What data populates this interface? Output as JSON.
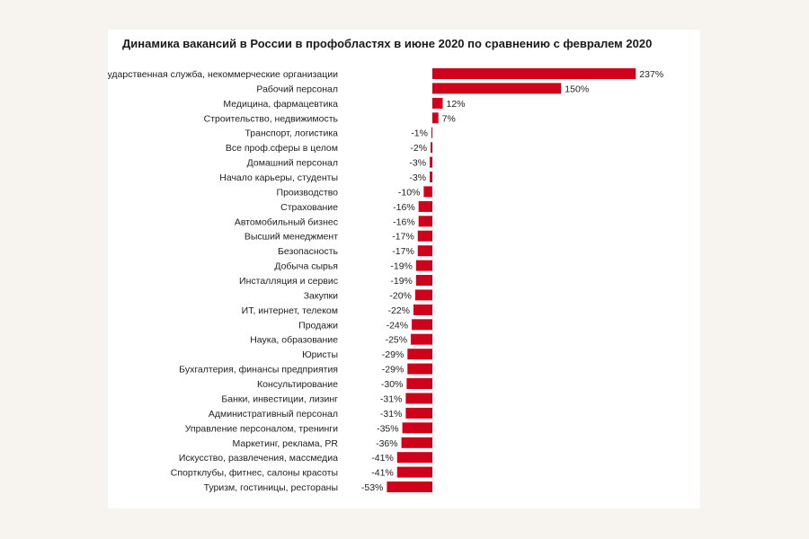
{
  "chart_data": {
    "type": "bar",
    "orientation": "horizontal",
    "title": "Динамика вакансий в России в профобластях в июне 2020 по сравнению с февралем 2020",
    "xlabel": "",
    "ylabel": "",
    "unit": "%",
    "grid": false,
    "bar_color": "#d0021b",
    "categories": [
      "Государственная служба, некоммерческие организации",
      "Рабочий персонал",
      "Медицина, фармацевтика",
      "Строительство, недвижимость",
      "Транспорт, логистика",
      "Все проф.сферы в целом",
      "Домашний персонал",
      "Начало карьеры, студенты",
      "Производство",
      "Страхование",
      "Автомобильный бизнес",
      "Высший менеджмент",
      "Безопасность",
      "Добыча сырья",
      "Инсталляция и сервис",
      "Закупки",
      "ИТ, интернет, телеком",
      "Продажи",
      "Наука, образование",
      "Юристы",
      "Бухгалтерия, финансы предприятия",
      "Консультирование",
      "Банки, инвестиции, лизинг",
      "Административный персонал",
      "Управление персоналом, тренинги",
      "Маркетинг, реклама, PR",
      "Искусство, развлечения, массмедиа",
      "Спортклубы, фитнес, салоны красоты",
      "Туризм, гостиницы, рестораны"
    ],
    "values": [
      237,
      150,
      12,
      7,
      -1,
      -2,
      -3,
      -3,
      -10,
      -16,
      -16,
      -17,
      -17,
      -19,
      -19,
      -20,
      -22,
      -24,
      -25,
      -29,
      -29,
      -30,
      -31,
      -31,
      -35,
      -36,
      -41,
      -41,
      -53
    ],
    "value_labels": [
      "237%",
      "150%",
      "12%",
      "7%",
      "-1%",
      "-2%",
      "-3%",
      "-3%",
      "-10%",
      "-16%",
      "-16%",
      "-17%",
      "-17%",
      "-19%",
      "-19%",
      "-20%",
      "-22%",
      "-24%",
      "-25%",
      "-29%",
      "-29%",
      "-30%",
      "-31%",
      "-31%",
      "-35%",
      "-36%",
      "-41%",
      "-41%",
      "-53%"
    ]
  }
}
